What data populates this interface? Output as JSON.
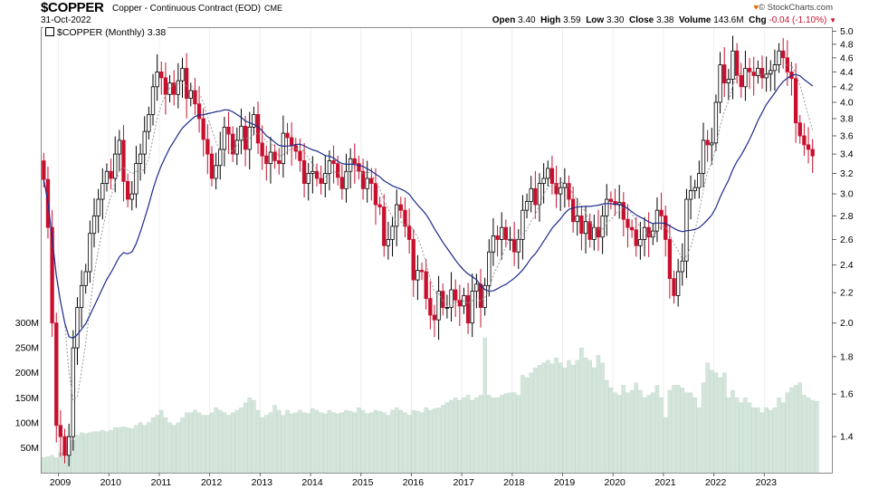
{
  "header": {
    "symbol": "$COPPER",
    "description": "Copper - Continuous Contract (EOD)",
    "exchange": "CME",
    "date": "31-Oct-2022",
    "copyright": "© StockCharts.com",
    "open_label": "Open",
    "open": "3.40",
    "high_label": "High",
    "high": "3.59",
    "low_label": "Low",
    "low": "3.30",
    "close_label": "Close",
    "close": "3.38",
    "volume_label": "Volume",
    "volume": "143.6M",
    "chg_label": "Chg",
    "chg": "-0.04 (-1.10%)"
  },
  "legend": "$COPPER (Monthly) 3.38",
  "colors": {
    "up": "#000000",
    "down": "#c8102e",
    "ma_long": "#1a2a8c",
    "ma_short": "#9a9a9a",
    "volume": "#d4e6dc"
  },
  "chart_data": {
    "type": "candlestick",
    "title": "$COPPER",
    "interval": "monthly",
    "x_tick_labels": [
      "2009",
      "2010",
      "2011",
      "2012",
      "2013",
      "2014",
      "2015",
      "2016",
      "2017",
      "2018",
      "2019",
      "2020",
      "2021",
      "2022",
      "2023"
    ],
    "price_tick_labels": [
      "5.0",
      "4.8",
      "4.6",
      "4.4",
      "4.2",
      "4.0",
      "3.8",
      "3.6",
      "3.4",
      "3.2",
      "3.0",
      "2.8",
      "2.6",
      "2.4",
      "2.2",
      "2.0",
      "1.8",
      "1.6",
      "1.4"
    ],
    "volume_tick_labels": [
      "300M",
      "250M",
      "200M",
      "150M",
      "100M",
      "50M"
    ],
    "price_scale": "log",
    "price_range": [
      1.25,
      5.05
    ],
    "volume_range": [
      0,
      330
    ],
    "start_month": "2008-09",
    "series": [
      {
        "name": "Copper Monthly Close",
        "values": [
          3.14,
          2.7,
          2.0,
          1.45,
          1.4,
          1.32,
          1.4,
          1.85,
          2.1,
          2.25,
          2.35,
          2.65,
          2.8,
          2.95,
          3.1,
          3.22,
          3.15,
          3.4,
          3.55,
          3.12,
          2.95,
          3.0,
          3.3,
          3.4,
          3.65,
          3.85,
          4.2,
          4.4,
          4.32,
          4.1,
          4.25,
          4.1,
          4.28,
          4.45,
          4.05,
          4.15,
          3.98,
          3.8,
          3.56,
          3.4,
          3.15,
          3.28,
          3.45,
          3.7,
          3.62,
          3.4,
          3.55,
          3.71,
          3.45,
          3.7,
          3.85,
          3.52,
          3.38,
          3.3,
          3.42,
          3.33,
          3.3,
          3.63,
          3.58,
          3.49,
          3.43,
          3.33,
          3.1,
          3.2,
          3.22,
          3.15,
          3.1,
          3.2,
          3.33,
          3.3,
          3.16,
          3.05,
          3.22,
          3.35,
          3.3,
          3.22,
          3.05,
          3.15,
          3.1,
          2.9,
          2.88,
          2.55,
          2.6,
          2.71,
          2.9,
          2.85,
          2.71,
          2.6,
          2.29,
          2.36,
          2.35,
          2.16,
          2.05,
          2.02,
          2.21,
          2.1,
          2.1,
          2.22,
          2.15,
          2.11,
          2.18,
          2.0,
          2.21,
          2.26,
          2.1,
          2.25,
          2.5,
          2.63,
          2.6,
          2.7,
          2.6,
          2.6,
          2.5,
          2.6,
          2.85,
          2.93,
          3.05,
          2.9,
          3.1,
          3.15,
          3.25,
          3.1,
          3.0,
          3.06,
          3.1,
          2.95,
          2.75,
          2.8,
          2.65,
          2.75,
          2.6,
          2.7,
          2.62,
          2.8,
          2.95,
          2.93,
          2.9,
          2.92,
          2.77,
          2.7,
          2.68,
          2.55,
          2.6,
          2.7,
          2.62,
          2.67,
          2.85,
          2.8,
          2.6,
          2.3,
          2.18,
          2.35,
          2.43,
          2.95,
          3.03,
          3.06,
          3.2,
          3.55,
          3.5,
          3.52,
          4.0,
          4.5,
          4.25,
          4.3,
          4.7,
          4.35,
          4.2,
          4.45,
          4.4,
          4.35,
          4.45,
          4.32,
          4.37,
          4.42,
          4.5,
          4.7,
          4.6,
          4.4,
          4.31,
          3.75,
          3.6,
          3.5,
          3.45,
          3.38
        ]
      }
    ],
    "overlays": [
      "simple moving average (long)",
      "simple moving average (short, dotted)"
    ],
    "volume_series": {
      "name": "Volume",
      "values": [
        30,
        32,
        35,
        30,
        40,
        55,
        60,
        65,
        75,
        80,
        78,
        80,
        82,
        82,
        85,
        82,
        85,
        90,
        90,
        92,
        90,
        88,
        95,
        100,
        95,
        100,
        110,
        115,
        125,
        110,
        100,
        95,
        100,
        110,
        120,
        120,
        125,
        120,
        115,
        115,
        120,
        130,
        125,
        120,
        115,
        120,
        125,
        130,
        140,
        150,
        145,
        125,
        110,
        115,
        120,
        135,
        125,
        115,
        125,
        118,
        120,
        125,
        120,
        118,
        128,
        125,
        120,
        118,
        125,
        120,
        118,
        120,
        125,
        123,
        120,
        130,
        125,
        118,
        120,
        125,
        123,
        120,
        115,
        125,
        130,
        125,
        120,
        115,
        125,
        123,
        120,
        130,
        125,
        128,
        130,
        135,
        140,
        145,
        150,
        145,
        150,
        155,
        145,
        150,
        155,
        270,
        155,
        150,
        150,
        155,
        158,
        160,
        160,
        155,
        195,
        190,
        200,
        210,
        215,
        220,
        225,
        218,
        230,
        220,
        210,
        225,
        215,
        225,
        250,
        230,
        225,
        210,
        235,
        220,
        185,
        170,
        160,
        155,
        175,
        160,
        165,
        180,
        165,
        150,
        155,
        160,
        175,
        150,
        110,
        165,
        175,
        175,
        170,
        160,
        160,
        150,
        130,
        180,
        220,
        205,
        200,
        190,
        200,
        150,
        165,
        150,
        140,
        150,
        140,
        130,
        130,
        120,
        130,
        125,
        130,
        150,
        140,
        160,
        170,
        175,
        180,
        155,
        150,
        145,
        143
      ]
    }
  }
}
